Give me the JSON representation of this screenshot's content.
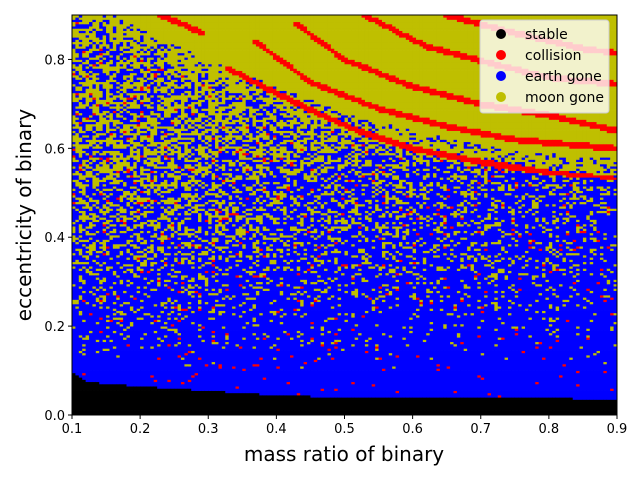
{
  "chart_data": {
    "type": "heatmap",
    "title": "",
    "xlabel": "mass ratio of binary",
    "ylabel": "eccentricity of binary",
    "xlim": [
      0.1,
      0.9
    ],
    "ylim": [
      0.0,
      0.9
    ],
    "xticks": [
      0.1,
      0.2,
      0.3,
      0.4,
      0.5,
      0.6,
      0.7,
      0.8,
      0.9
    ],
    "xtick_labels": [
      "0.1",
      "0.2",
      "0.3",
      "0.4",
      "0.5",
      "0.6",
      "0.7",
      "0.8",
      "0.9"
    ],
    "yticks": [
      0.0,
      0.2,
      0.4,
      0.6,
      0.8
    ],
    "ytick_labels": [
      "0.0",
      "0.2",
      "0.4",
      "0.6",
      "0.8"
    ],
    "grid": false,
    "legend_position": "upper right",
    "categories": [
      {
        "name": "stable",
        "color": "#000000"
      },
      {
        "name": "collision",
        "color": "#ff0000"
      },
      {
        "name": "earth gone",
        "color": "#0000ff"
      },
      {
        "name": "moon gone",
        "color": "#bfbf00"
      }
    ],
    "regions": {
      "stable_boundary": [
        [
          0.1,
          0.1
        ],
        [
          0.12,
          0.075
        ],
        [
          0.2,
          0.065
        ],
        [
          0.3,
          0.055
        ],
        [
          0.4,
          0.045
        ],
        [
          0.5,
          0.04
        ],
        [
          0.6,
          0.04
        ],
        [
          0.7,
          0.04
        ],
        [
          0.8,
          0.04
        ],
        [
          0.9,
          0.033
        ]
      ],
      "moon_gone_lower_boundary": [
        [
          0.1,
          0.9
        ],
        [
          0.15,
          0.86
        ],
        [
          0.2,
          0.82
        ],
        [
          0.3,
          0.75
        ],
        [
          0.4,
          0.69
        ],
        [
          0.5,
          0.63
        ],
        [
          0.6,
          0.59
        ],
        [
          0.7,
          0.56
        ],
        [
          0.8,
          0.54
        ],
        [
          0.9,
          0.53
        ]
      ],
      "collision_bands": [
        {
          "points": [
            [
              0.33,
              0.78
            ],
            [
              0.38,
              0.74
            ],
            [
              0.42,
              0.71
            ],
            [
              0.46,
              0.68
            ],
            [
              0.52,
              0.64
            ],
            [
              0.6,
              0.6
            ],
            [
              0.7,
              0.57
            ],
            [
              0.8,
              0.545
            ],
            [
              0.9,
              0.53
            ]
          ]
        },
        {
          "points": [
            [
              0.37,
              0.84
            ],
            [
              0.45,
              0.75
            ],
            [
              0.55,
              0.69
            ],
            [
              0.65,
              0.65
            ],
            [
              0.75,
              0.62
            ],
            [
              0.9,
              0.6
            ]
          ]
        },
        {
          "points": [
            [
              0.43,
              0.88
            ],
            [
              0.5,
              0.8
            ],
            [
              0.6,
              0.74
            ],
            [
              0.7,
              0.7
            ],
            [
              0.8,
              0.675
            ],
            [
              0.9,
              0.64
            ]
          ]
        },
        {
          "points": [
            [
              0.53,
              0.9
            ],
            [
              0.62,
              0.83
            ],
            [
              0.72,
              0.79
            ],
            [
              0.8,
              0.76
            ],
            [
              0.9,
              0.745
            ]
          ]
        },
        {
          "points": [
            [
              0.65,
              0.9
            ],
            [
              0.75,
              0.86
            ],
            [
              0.85,
              0.825
            ],
            [
              0.9,
              0.815
            ]
          ]
        },
        {
          "points": [
            [
              0.23,
              0.9
            ],
            [
              0.27,
              0.875
            ],
            [
              0.29,
              0.86
            ]
          ]
        }
      ]
    }
  }
}
